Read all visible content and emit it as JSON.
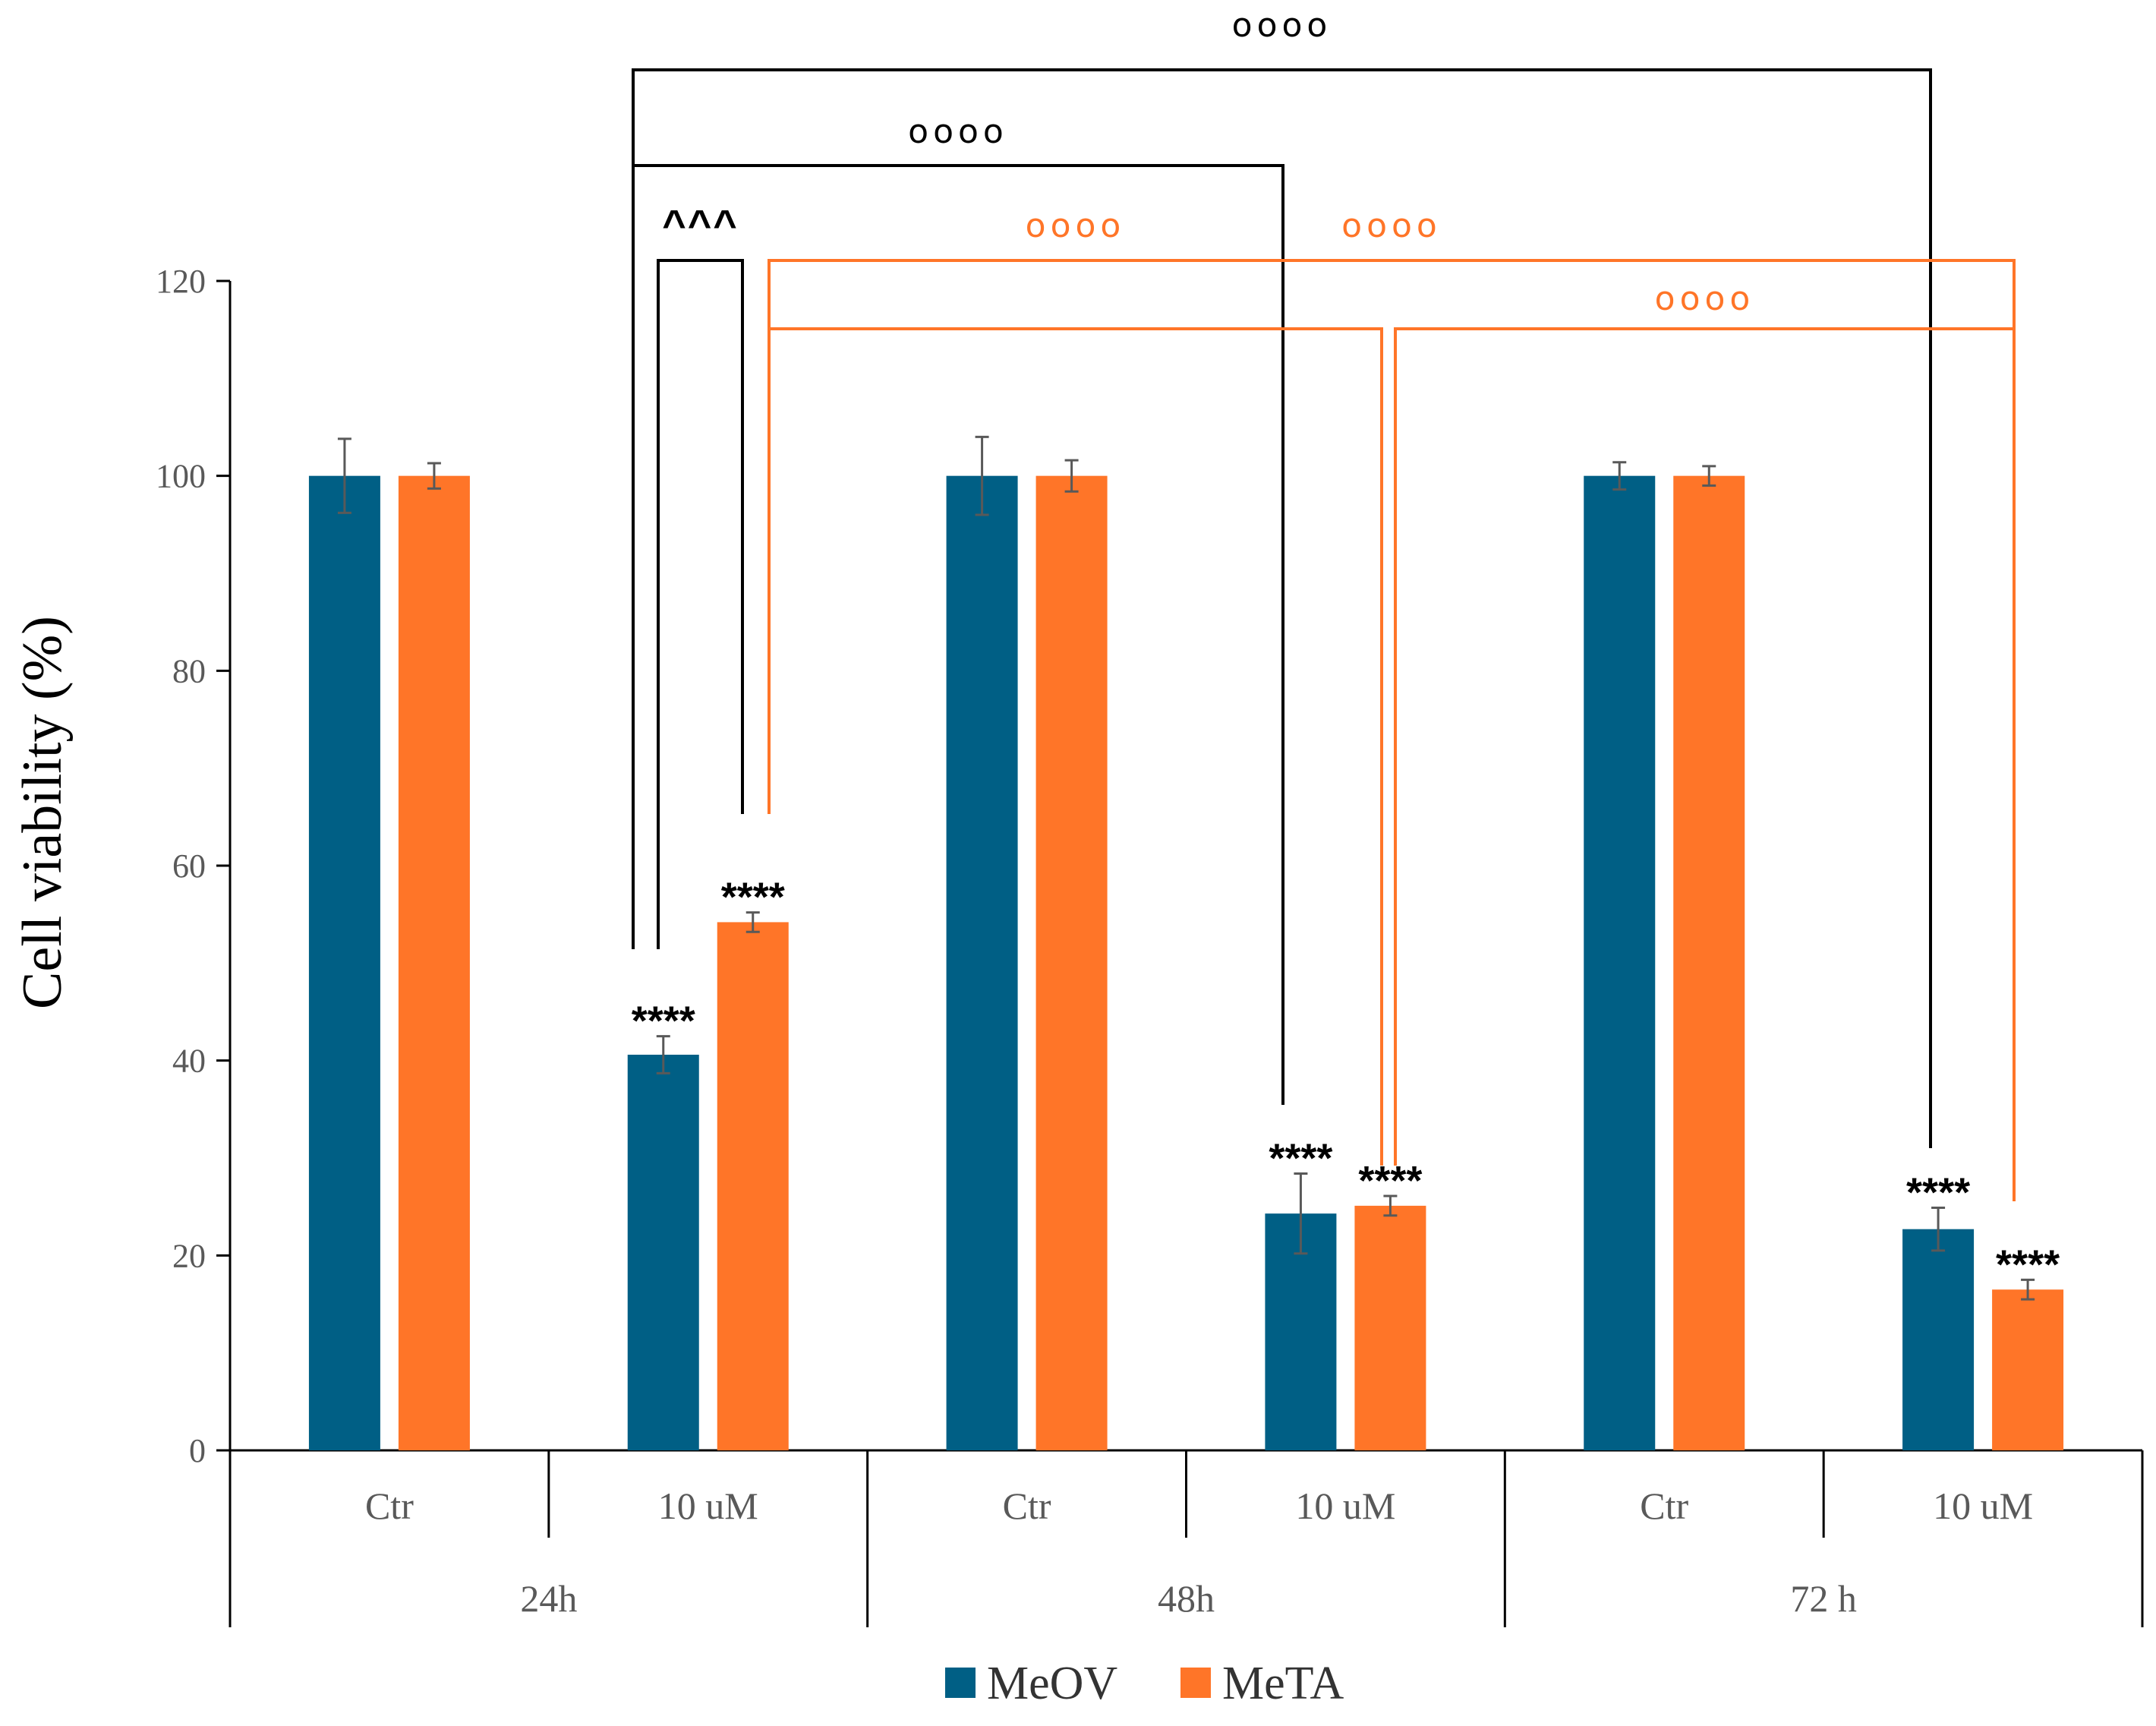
{
  "chart_data": {
    "type": "bar",
    "ylabel": "Cell viability (%)",
    "ylim": [
      0,
      120
    ],
    "yticks": [
      0,
      20,
      40,
      60,
      80,
      100,
      120
    ],
    "categories": [
      "Ctr",
      "10 uM",
      "Ctr",
      "10 uM",
      "Ctr",
      "10 uM"
    ],
    "groups": [
      "24h",
      "48h",
      "72 h"
    ],
    "series": [
      {
        "name": "MeOV",
        "color": "#005F85",
        "values": [
          100,
          40.6,
          100,
          24.3,
          100,
          22.7
        ],
        "errors": [
          3.8,
          1.9,
          4.0,
          4.1,
          1.4,
          2.2
        ]
      },
      {
        "name": "MeTA",
        "color": "#FF7528",
        "values": [
          100,
          54.2,
          100,
          25.1,
          100,
          16.5
        ],
        "errors": [
          1.3,
          1.0,
          1.6,
          1.0,
          1.0,
          1.0
        ]
      }
    ],
    "bar_annotations": [
      {
        "series": 0,
        "index": 1,
        "text": "****"
      },
      {
        "series": 1,
        "index": 1,
        "text": "****"
      },
      {
        "series": 0,
        "index": 3,
        "text": "****"
      },
      {
        "series": 1,
        "index": 3,
        "text": "****"
      },
      {
        "series": 0,
        "index": 5,
        "text": "****"
      },
      {
        "series": 1,
        "index": 5,
        "text": "****"
      }
    ],
    "brackets": [
      {
        "from": [
          0,
          1
        ],
        "to": [
          1,
          1
        ],
        "text": "^^^",
        "color": "#000000"
      },
      {
        "from": [
          0,
          1
        ],
        "to": [
          0,
          3
        ],
        "text": "oooo",
        "color": "#000000"
      },
      {
        "from": [
          0,
          1
        ],
        "to": [
          0,
          5
        ],
        "text": "oooo",
        "color": "#000000"
      },
      {
        "from": [
          1,
          1
        ],
        "to": [
          1,
          3
        ],
        "text": "oooo",
        "color": "#FF7528"
      },
      {
        "from": [
          1,
          1
        ],
        "to": [
          1,
          5
        ],
        "text": "oooo",
        "color": "#FF7528"
      },
      {
        "from": [
          1,
          3
        ],
        "to": [
          1,
          5
        ],
        "text": "oooo",
        "color": "#FF7528"
      }
    ]
  }
}
